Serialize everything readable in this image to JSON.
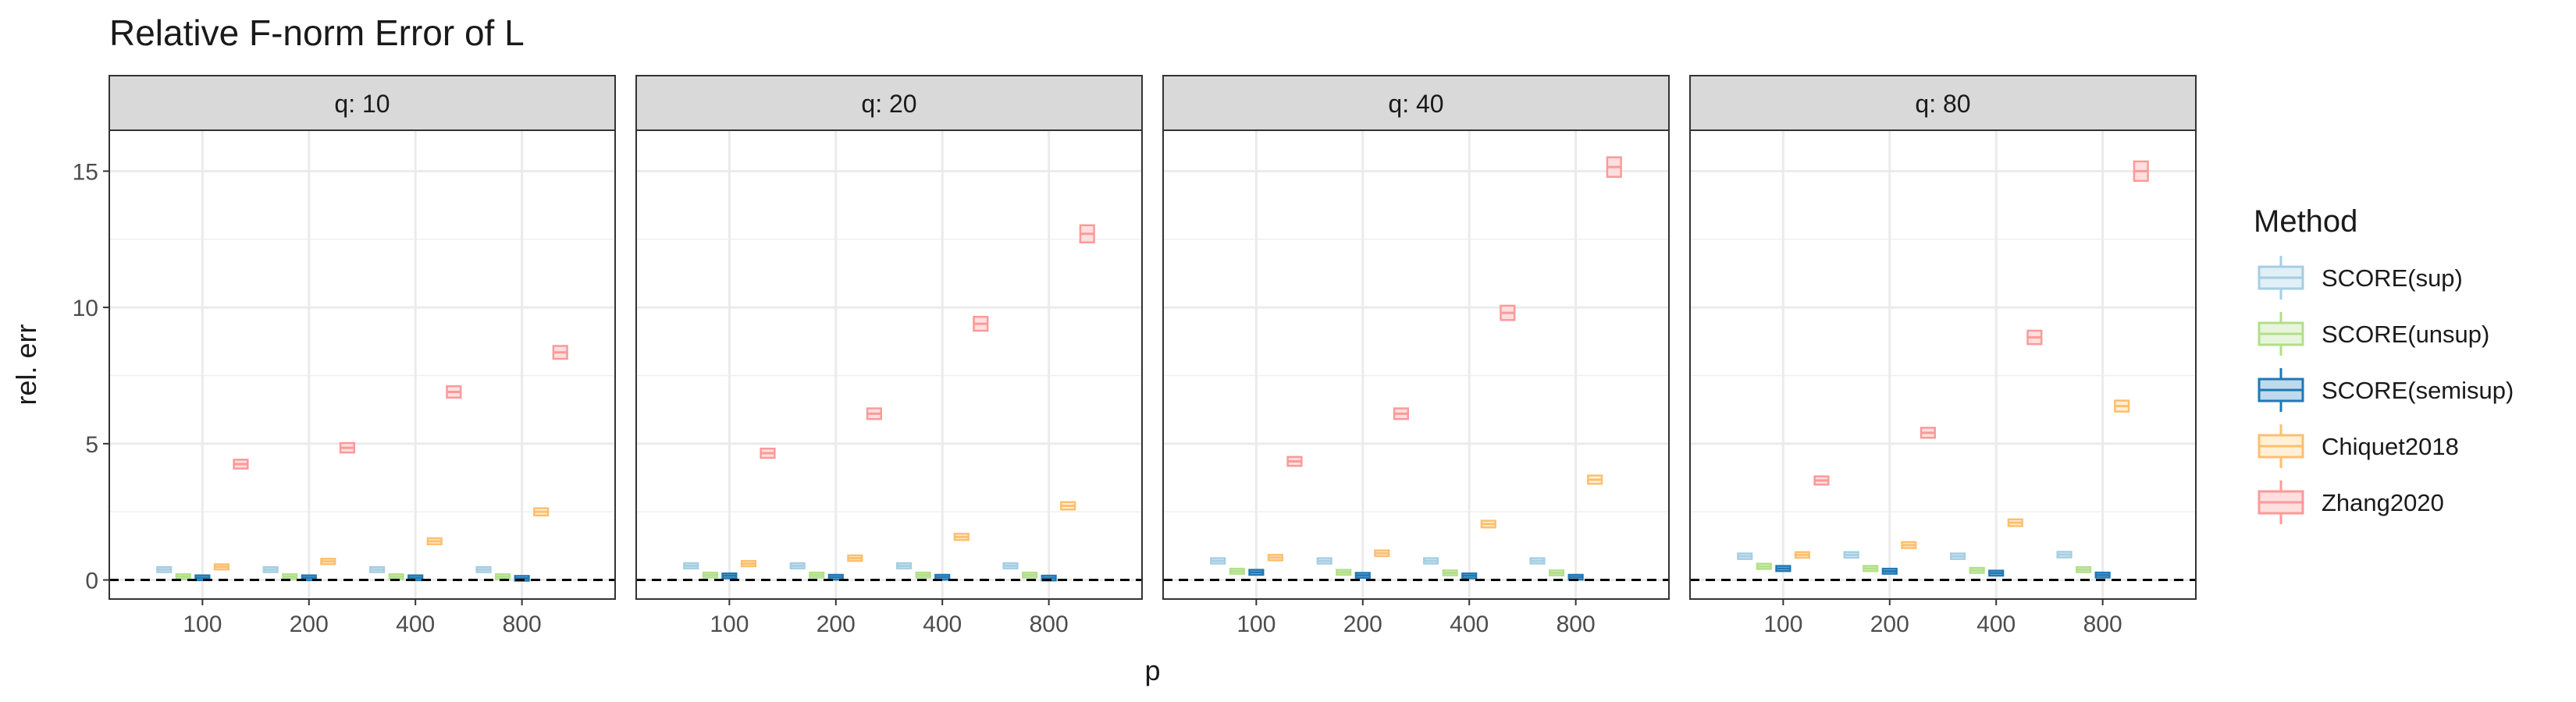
{
  "chart_data": {
    "type": "boxplot",
    "title": "Relative F-norm Error of L",
    "xlabel": "p",
    "ylabel": "rel. err",
    "facet_prefix": "q: ",
    "facets": [
      "10",
      "20",
      "40",
      "80"
    ],
    "x_categories": [
      "100",
      "200",
      "400",
      "800"
    ],
    "ylim": [
      -0.7,
      16.5
    ],
    "y_ticks": [
      0,
      5,
      10,
      15
    ],
    "reference_line": {
      "y": 0,
      "style": "dashed"
    },
    "legend": {
      "title": "Method",
      "position": "right",
      "items": [
        "SCORE(sup)",
        "SCORE(unsup)",
        "SCORE(semisup)",
        "Chiquet2018",
        "Zhang2020"
      ]
    },
    "series": [
      {
        "name": "SCORE(sup)",
        "color": "#a6cee3",
        "fill": "#e1eff7",
        "values": [
          [
            0.38,
            0.38,
            0.38,
            0.38
          ],
          [
            0.52,
            0.52,
            0.52,
            0.52
          ],
          [
            0.7,
            0.7,
            0.7,
            0.7
          ],
          [
            0.87,
            0.92,
            0.87,
            0.93
          ]
        ]
      },
      {
        "name": "SCORE(unsup)",
        "color": "#b2df8a",
        "fill": "#e8f5dc",
        "values": [
          [
            0.12,
            0.12,
            0.12,
            0.12
          ],
          [
            0.18,
            0.18,
            0.18,
            0.18
          ],
          [
            0.32,
            0.28,
            0.26,
            0.26
          ],
          [
            0.5,
            0.42,
            0.35,
            0.38
          ]
        ]
      },
      {
        "name": "SCORE(semisup)",
        "color": "#1f78b4",
        "fill": "#c1d9ec",
        "values": [
          [
            0.08,
            0.08,
            0.08,
            0.06
          ],
          [
            0.15,
            0.1,
            0.1,
            0.07
          ],
          [
            0.28,
            0.17,
            0.15,
            0.1
          ],
          [
            0.42,
            0.32,
            0.25,
            0.18
          ]
        ]
      },
      {
        "name": "Chiquet2018",
        "color": "#fdbf6f",
        "fill": "#fff0d8",
        "values": [
          [
            0.48,
            0.68,
            1.42,
            2.5
          ],
          [
            0.6,
            0.8,
            1.58,
            2.72
          ],
          [
            0.82,
            0.98,
            2.05,
            3.68
          ],
          [
            0.92,
            1.28,
            2.1,
            6.38
          ]
        ]
      },
      {
        "name": "Zhang2020",
        "color": "#fb9a99",
        "fill": "#fedfdf",
        "values": [
          [
            4.25,
            4.85,
            6.9,
            8.35
          ],
          [
            4.65,
            6.1,
            9.4,
            12.7
          ],
          [
            4.35,
            6.1,
            9.8,
            15.15
          ],
          [
            3.65,
            5.4,
            8.9,
            15.0
          ]
        ]
      }
    ]
  }
}
